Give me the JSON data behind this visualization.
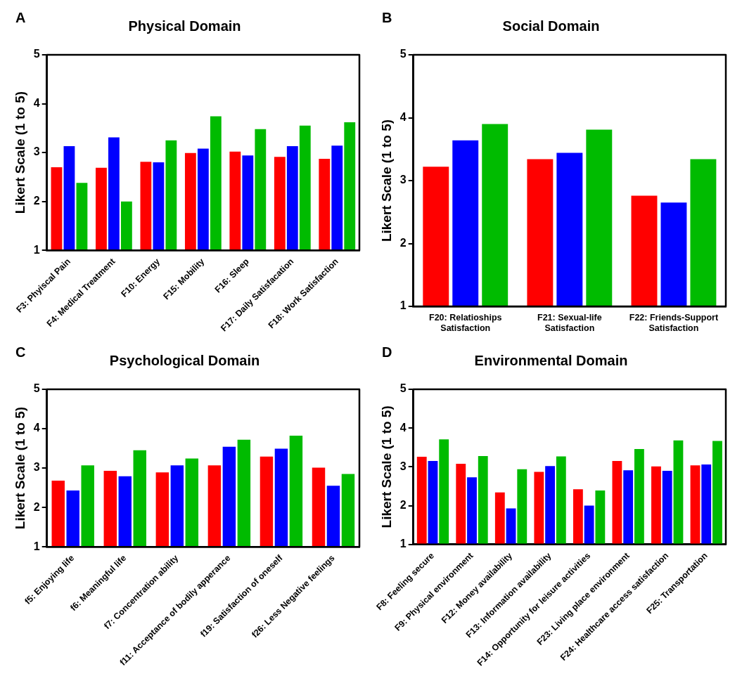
{
  "chart_data": [
    {
      "type": "bar",
      "title": "Physical Domain",
      "ylabel": "Likert Scale (1 to 5)",
      "annotations": [
        "A"
      ],
      "categories": [
        "F3: Phyiscal Pain",
        "F4: Medical Treatment",
        "F10: Energy",
        "F15: Mobility",
        "F16: Sleep",
        "F17: Daily Satisfacation",
        "F18: Work Satisfaction"
      ],
      "series": [
        {
          "color": "#ff0000",
          "values": [
            2.7,
            2.69,
            2.81,
            2.99,
            3.02,
            2.91,
            2.87
          ]
        },
        {
          "color": "#0000ff",
          "values": [
            3.13,
            3.31,
            2.8,
            3.08,
            2.94,
            3.13,
            3.14
          ]
        },
        {
          "color": "#00bb00",
          "values": [
            2.38,
            2.0,
            3.25,
            3.74,
            3.48,
            3.55,
            3.62
          ]
        }
      ],
      "ylim": [
        1,
        5
      ],
      "yticks": [
        1,
        2,
        3,
        4,
        5
      ],
      "grid": false,
      "legend": false
    },
    {
      "type": "bar",
      "title": "Social Domain",
      "ylabel": "Likert Scale (1 to 5)",
      "annotations": [
        "B"
      ],
      "categories": [
        "F20: Relatioships Satisfaction",
        "F21: Sexual-life Satisfaction",
        "F22: Friends-Support Satisfaction"
      ],
      "series": [
        {
          "color": "#ff0000",
          "values": [
            3.22,
            3.34,
            2.76
          ]
        },
        {
          "color": "#0000ff",
          "values": [
            3.64,
            3.44,
            2.65
          ]
        },
        {
          "color": "#00bb00",
          "values": [
            3.9,
            3.81,
            3.34
          ]
        }
      ],
      "ylim": [
        1,
        5
      ],
      "yticks": [
        1,
        2,
        3,
        4,
        5
      ],
      "grid": false,
      "legend": false
    },
    {
      "type": "bar",
      "title": "Psychological Domain",
      "ylabel": "Likert Scale (1 to 5)",
      "annotations": [
        "C"
      ],
      "categories": [
        "f5: Enjoying life",
        "f6: Meaningful life",
        "f7: Concentration ability",
        "f11: Acceptance of bodily apperance",
        "f19: Satisfaction of oneself",
        "f26: Less Negative feelings"
      ],
      "series": [
        {
          "color": "#ff0000",
          "values": [
            2.68,
            2.93,
            2.89,
            3.07,
            3.29,
            3.01
          ]
        },
        {
          "color": "#0000ff",
          "values": [
            2.43,
            2.79,
            3.07,
            3.54,
            3.49,
            2.55
          ]
        },
        {
          "color": "#00bb00",
          "values": [
            3.07,
            3.45,
            3.24,
            3.72,
            3.82,
            2.85
          ]
        }
      ],
      "ylim": [
        1,
        5
      ],
      "yticks": [
        1,
        2,
        3,
        4,
        5
      ],
      "grid": false,
      "legend": false
    },
    {
      "type": "bar",
      "title": "Environmental Domain",
      "ylabel": "Likert Scale (1 to 5)",
      "annotations": [
        "D"
      ],
      "categories": [
        "F8: Feeling secure",
        "F9: Physical environment",
        "F12: Money availability",
        "F13: Information availability",
        "F14: Opportunity for leisure activities",
        "F23: Living place environment",
        "F24: Healthcare access satisfaction",
        "F25: Transportation"
      ],
      "series": [
        {
          "color": "#ff0000",
          "values": [
            3.26,
            3.08,
            2.34,
            2.87,
            2.42,
            3.15,
            3.01,
            3.04
          ]
        },
        {
          "color": "#0000ff",
          "values": [
            3.15,
            2.73,
            1.93,
            3.02,
            2.0,
            2.91,
            2.9,
            3.06
          ]
        },
        {
          "color": "#00bb00",
          "values": [
            3.71,
            3.28,
            2.94,
            3.27,
            2.39,
            3.46,
            3.68,
            3.67
          ]
        }
      ],
      "ylim": [
        1,
        5
      ],
      "yticks": [
        1,
        2,
        3,
        4,
        5
      ],
      "grid": false,
      "legend": false
    }
  ]
}
